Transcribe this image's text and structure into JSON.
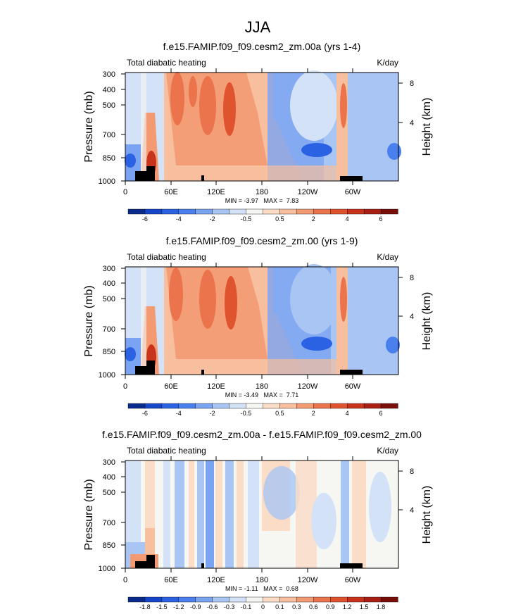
{
  "figure_title": "JJA",
  "chart_data": [
    {
      "type": "heatmap",
      "title": "f.e15.FAMIP.f09_f09.cesm2_zm.00a (yrs 1-4)",
      "left_label": "Total diabatic heating",
      "units": "K/day",
      "ylabel": "Pressure (mb)",
      "ylabel_right": "Height (km)",
      "pressure_ticks": [
        "300",
        "400",
        "500",
        "700",
        "850",
        "1000"
      ],
      "height_ticks": [
        "8",
        "4"
      ],
      "lon_ticks": [
        "0",
        "60E",
        "120E",
        "180",
        "120W",
        "60W"
      ],
      "min": -3.97,
      "max": 7.83,
      "stats_text": "MIN = -3.97   MAX =  7.83",
      "colorbar_labels": [
        "-6",
        "-4",
        "-2",
        "-0.5",
        "0.5",
        "2",
        "4",
        "6"
      ]
    },
    {
      "type": "heatmap",
      "title": "f.e15.FAMIP.f09_f09.cesm2_zm.00 (yrs 1-9)",
      "left_label": "Total diabatic heating",
      "units": "K/day",
      "ylabel": "Pressure (mb)",
      "ylabel_right": "Height (km)",
      "pressure_ticks": [
        "300",
        "400",
        "500",
        "700",
        "850",
        "1000"
      ],
      "height_ticks": [
        "8",
        "4"
      ],
      "lon_ticks": [
        "0",
        "60E",
        "120E",
        "180",
        "120W",
        "60W"
      ],
      "min": -3.49,
      "max": 7.71,
      "stats_text": "MIN = -3.49   MAX =  7.71",
      "colorbar_labels": [
        "-6",
        "-4",
        "-2",
        "-0.5",
        "0.5",
        "2",
        "4",
        "6"
      ]
    },
    {
      "type": "heatmap",
      "title": "f.e15.FAMIP.f09_f09.cesm2_zm.00a - f.e15.FAMIP.f09_f09.cesm2_zm.00",
      "left_label": "Total diabatic heating",
      "units": "K/day",
      "ylabel": "Pressure (mb)",
      "ylabel_right": "Height (km)",
      "pressure_ticks": [
        "300",
        "400",
        "500",
        "700",
        "850",
        "1000"
      ],
      "height_ticks": [
        "8",
        "4"
      ],
      "lon_ticks": [
        "0",
        "60E",
        "120E",
        "180",
        "120W",
        "60W"
      ],
      "min": -1.11,
      "max": 0.68,
      "stats_text": "MIN = -1.11   MAX =  0.68",
      "colorbar_labels": [
        "-1.8",
        "-1.5",
        "-1.2",
        "-0.9",
        "-0.6",
        "-0.3",
        "-0.1",
        "0",
        "0.1",
        "0.3",
        "0.6",
        "0.9",
        "1.2",
        "1.5",
        "1.8"
      ]
    }
  ],
  "colormap": [
    "#0a2b8c",
    "#1546c8",
    "#2a62e3",
    "#4a80ee",
    "#7aa3f1",
    "#a9c5f4",
    "#d3e2f6",
    "#f6f6f2",
    "#fbdcc6",
    "#f8bf9e",
    "#f39a73",
    "#ec744c",
    "#e0532f",
    "#c8331c",
    "#a81f13",
    "#7a0e08"
  ]
}
